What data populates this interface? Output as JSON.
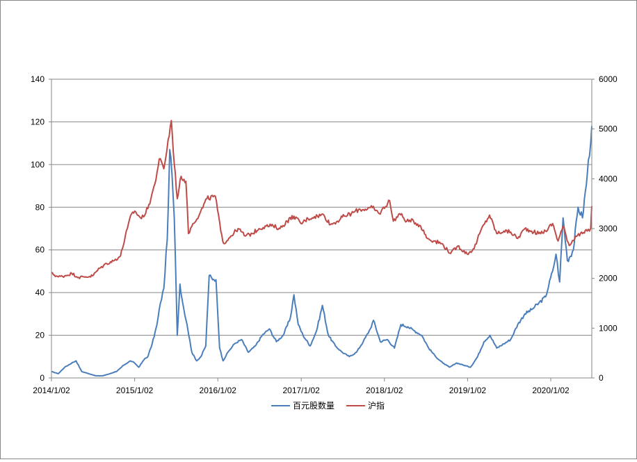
{
  "chart_data": {
    "type": "line",
    "title": "",
    "xlabel": "",
    "ylabel": "",
    "y2label": "",
    "grid": true,
    "legend_position": "bottom",
    "x_range": [
      "2014-01-02",
      "2020-06-30"
    ],
    "x_ticks": [
      "2014/1/02",
      "2015/1/02",
      "2016/1/02",
      "2017/1/02",
      "2018/1/02",
      "2019/1/02",
      "2020/1/02"
    ],
    "y_left": {
      "range": [
        0,
        140
      ],
      "ticks": [
        "0",
        "20",
        "40",
        "60",
        "80",
        "100",
        "120",
        "140"
      ]
    },
    "y_right": {
      "range": [
        0,
        6000
      ],
      "ticks": [
        "0",
        "1000",
        "2000",
        "3000",
        "4000",
        "5000",
        "6000"
      ]
    },
    "series": [
      {
        "name": "百元股数量",
        "axis": "left",
        "color": "#4a7ebb",
        "points": [
          [
            "2014-01-02",
            3
          ],
          [
            "2014-02-01",
            2
          ],
          [
            "2014-03-01",
            5
          ],
          [
            "2014-04-01",
            7
          ],
          [
            "2014-04-20",
            8
          ],
          [
            "2014-05-15",
            3
          ],
          [
            "2014-06-15",
            2
          ],
          [
            "2014-07-15",
            1
          ],
          [
            "2014-08-15",
            1
          ],
          [
            "2014-09-15",
            2
          ],
          [
            "2014-10-15",
            3
          ],
          [
            "2014-11-15",
            6
          ],
          [
            "2014-12-15",
            8
          ],
          [
            "2015-01-02",
            7
          ],
          [
            "2015-01-20",
            5
          ],
          [
            "2015-02-15",
            9
          ],
          [
            "2015-03-01",
            10
          ],
          [
            "2015-03-20",
            16
          ],
          [
            "2015-04-10",
            25
          ],
          [
            "2015-04-25",
            35
          ],
          [
            "2015-05-10",
            42
          ],
          [
            "2015-05-25",
            65
          ],
          [
            "2015-06-05",
            107
          ],
          [
            "2015-06-15",
            95
          ],
          [
            "2015-06-25",
            75
          ],
          [
            "2015-07-08",
            20
          ],
          [
            "2015-07-20",
            44
          ],
          [
            "2015-08-01",
            35
          ],
          [
            "2015-08-20",
            25
          ],
          [
            "2015-09-10",
            12
          ],
          [
            "2015-10-01",
            8
          ],
          [
            "2015-10-20",
            10
          ],
          [
            "2015-11-10",
            15
          ],
          [
            "2015-11-25",
            48
          ],
          [
            "2015-12-10",
            46
          ],
          [
            "2015-12-25",
            46
          ],
          [
            "2016-01-10",
            14
          ],
          [
            "2016-01-25",
            8
          ],
          [
            "2016-02-15",
            12
          ],
          [
            "2016-03-15",
            16
          ],
          [
            "2016-04-15",
            18
          ],
          [
            "2016-05-15",
            12
          ],
          [
            "2016-06-15",
            15
          ],
          [
            "2016-07-15",
            20
          ],
          [
            "2016-08-15",
            23
          ],
          [
            "2016-09-15",
            17
          ],
          [
            "2016-10-15",
            20
          ],
          [
            "2016-11-15",
            28
          ],
          [
            "2016-12-01",
            39
          ],
          [
            "2016-12-20",
            25
          ],
          [
            "2017-01-10",
            20
          ],
          [
            "2017-02-10",
            15
          ],
          [
            "2017-03-10",
            22
          ],
          [
            "2017-04-05",
            34
          ],
          [
            "2017-05-01",
            20
          ],
          [
            "2017-06-01",
            15
          ],
          [
            "2017-07-01",
            12
          ],
          [
            "2017-08-01",
            10
          ],
          [
            "2017-09-01",
            12
          ],
          [
            "2017-10-01",
            17
          ],
          [
            "2017-11-01",
            23
          ],
          [
            "2017-11-15",
            27
          ],
          [
            "2017-12-15",
            17
          ],
          [
            "2018-01-15",
            18
          ],
          [
            "2018-02-15",
            14
          ],
          [
            "2018-03-15",
            25
          ],
          [
            "2018-04-15",
            24
          ],
          [
            "2018-05-15",
            22
          ],
          [
            "2018-06-15",
            20
          ],
          [
            "2018-07-15",
            14
          ],
          [
            "2018-08-15",
            10
          ],
          [
            "2018-09-15",
            7
          ],
          [
            "2018-10-15",
            5
          ],
          [
            "2018-11-15",
            7
          ],
          [
            "2018-12-15",
            6
          ],
          [
            "2019-01-15",
            5
          ],
          [
            "2019-02-15",
            10
          ],
          [
            "2019-03-15",
            17
          ],
          [
            "2019-04-10",
            20
          ],
          [
            "2019-05-10",
            14
          ],
          [
            "2019-06-10",
            16
          ],
          [
            "2019-07-10",
            18
          ],
          [
            "2019-08-10",
            25
          ],
          [
            "2019-09-10",
            30
          ],
          [
            "2019-10-10",
            32
          ],
          [
            "2019-11-10",
            35
          ],
          [
            "2019-12-10",
            38
          ],
          [
            "2020-01-10",
            50
          ],
          [
            "2020-01-25",
            58
          ],
          [
            "2020-02-10",
            45
          ],
          [
            "2020-02-25",
            75
          ],
          [
            "2020-03-15",
            55
          ],
          [
            "2020-04-10",
            60
          ],
          [
            "2020-05-01",
            80
          ],
          [
            "2020-05-20",
            75
          ],
          [
            "2020-06-10",
            95
          ],
          [
            "2020-06-30",
            118
          ]
        ]
      },
      {
        "name": "沪指",
        "axis": "right",
        "color": "#be4b48",
        "points": [
          [
            "2014-01-02",
            2100
          ],
          [
            "2014-02-01",
            2030
          ],
          [
            "2014-03-01",
            2050
          ],
          [
            "2014-04-01",
            2100
          ],
          [
            "2014-05-01",
            2020
          ],
          [
            "2014-06-01",
            2030
          ],
          [
            "2014-07-01",
            2050
          ],
          [
            "2014-08-01",
            2200
          ],
          [
            "2014-09-01",
            2300
          ],
          [
            "2014-10-01",
            2350
          ],
          [
            "2014-11-01",
            2450
          ],
          [
            "2014-12-01",
            3000
          ],
          [
            "2014-12-20",
            3300
          ],
          [
            "2015-01-02",
            3350
          ],
          [
            "2015-02-01",
            3200
          ],
          [
            "2015-03-01",
            3400
          ],
          [
            "2015-04-01",
            3900
          ],
          [
            "2015-04-20",
            4400
          ],
          [
            "2015-05-10",
            4200
          ],
          [
            "2015-06-12",
            5170
          ],
          [
            "2015-06-25",
            4300
          ],
          [
            "2015-07-08",
            3600
          ],
          [
            "2015-07-25",
            4050
          ],
          [
            "2015-08-15",
            3950
          ],
          [
            "2015-08-26",
            2900
          ],
          [
            "2015-09-15",
            3100
          ],
          [
            "2015-10-15",
            3300
          ],
          [
            "2015-11-15",
            3600
          ],
          [
            "2015-12-22",
            3650
          ],
          [
            "2016-01-15",
            2950
          ],
          [
            "2016-01-28",
            2700
          ],
          [
            "2016-02-28",
            2850
          ],
          [
            "2016-03-31",
            3000
          ],
          [
            "2016-05-01",
            2850
          ],
          [
            "2016-06-01",
            2900
          ],
          [
            "2016-07-01",
            3000
          ],
          [
            "2016-08-01",
            3050
          ],
          [
            "2016-09-01",
            3050
          ],
          [
            "2016-10-01",
            3000
          ],
          [
            "2016-11-01",
            3150
          ],
          [
            "2016-12-01",
            3250
          ],
          [
            "2017-01-01",
            3100
          ],
          [
            "2017-02-01",
            3200
          ],
          [
            "2017-03-01",
            3240
          ],
          [
            "2017-04-10",
            3280
          ],
          [
            "2017-05-10",
            3080
          ],
          [
            "2017-06-10",
            3150
          ],
          [
            "2017-07-10",
            3250
          ],
          [
            "2017-08-10",
            3300
          ],
          [
            "2017-09-10",
            3380
          ],
          [
            "2017-10-10",
            3390
          ],
          [
            "2017-11-10",
            3420
          ],
          [
            "2017-12-10",
            3300
          ],
          [
            "2018-01-25",
            3560
          ],
          [
            "2018-02-10",
            3150
          ],
          [
            "2018-03-10",
            3300
          ],
          [
            "2018-04-10",
            3150
          ],
          [
            "2018-05-10",
            3150
          ],
          [
            "2018-06-10",
            3050
          ],
          [
            "2018-07-10",
            2800
          ],
          [
            "2018-08-10",
            2750
          ],
          [
            "2018-09-10",
            2700
          ],
          [
            "2018-10-20",
            2500
          ],
          [
            "2018-11-20",
            2650
          ],
          [
            "2018-12-31",
            2490
          ],
          [
            "2019-01-31",
            2600
          ],
          [
            "2019-02-28",
            2950
          ],
          [
            "2019-04-08",
            3270
          ],
          [
            "2019-05-10",
            2900
          ],
          [
            "2019-06-10",
            2950
          ],
          [
            "2019-07-10",
            2930
          ],
          [
            "2019-08-10",
            2800
          ],
          [
            "2019-09-10",
            3000
          ],
          [
            "2019-10-10",
            2950
          ],
          [
            "2019-11-10",
            2900
          ],
          [
            "2019-12-10",
            2950
          ],
          [
            "2020-01-10",
            3100
          ],
          [
            "2020-02-03",
            2750
          ],
          [
            "2020-02-25",
            3050
          ],
          [
            "2020-03-23",
            2660
          ],
          [
            "2020-04-20",
            2850
          ],
          [
            "2020-05-20",
            2900
          ],
          [
            "2020-06-10",
            2950
          ],
          [
            "2020-06-25",
            3000
          ],
          [
            "2020-06-30",
            3450
          ]
        ]
      }
    ]
  }
}
